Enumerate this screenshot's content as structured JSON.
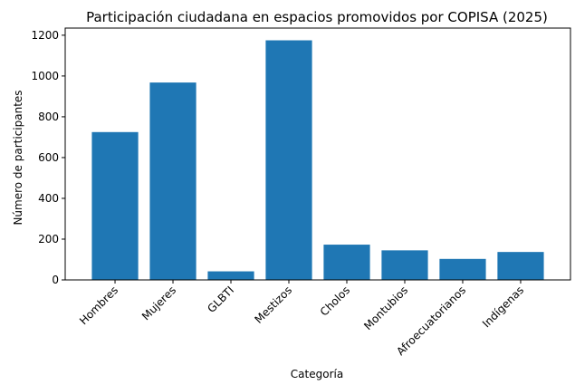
{
  "chart_data": {
    "type": "bar",
    "title": "Participación ciudadana en espacios promovidos por COPISA (2025)",
    "xlabel": "Categoría",
    "ylabel": "Número de participantes",
    "categories": [
      "Hombres",
      "Mujeres",
      "GLBTI",
      "Mestizos",
      "Cholos",
      "Montubios",
      "Afroecuatorianos",
      "Indígenas"
    ],
    "values": [
      725,
      968,
      42,
      1175,
      173,
      145,
      103,
      137
    ],
    "ylim": [
      0,
      1235
    ],
    "yticks": [
      0,
      200,
      400,
      600,
      800,
      1000,
      1200
    ],
    "bar_color": "#1f77b4",
    "grid": false,
    "legend": "none"
  }
}
